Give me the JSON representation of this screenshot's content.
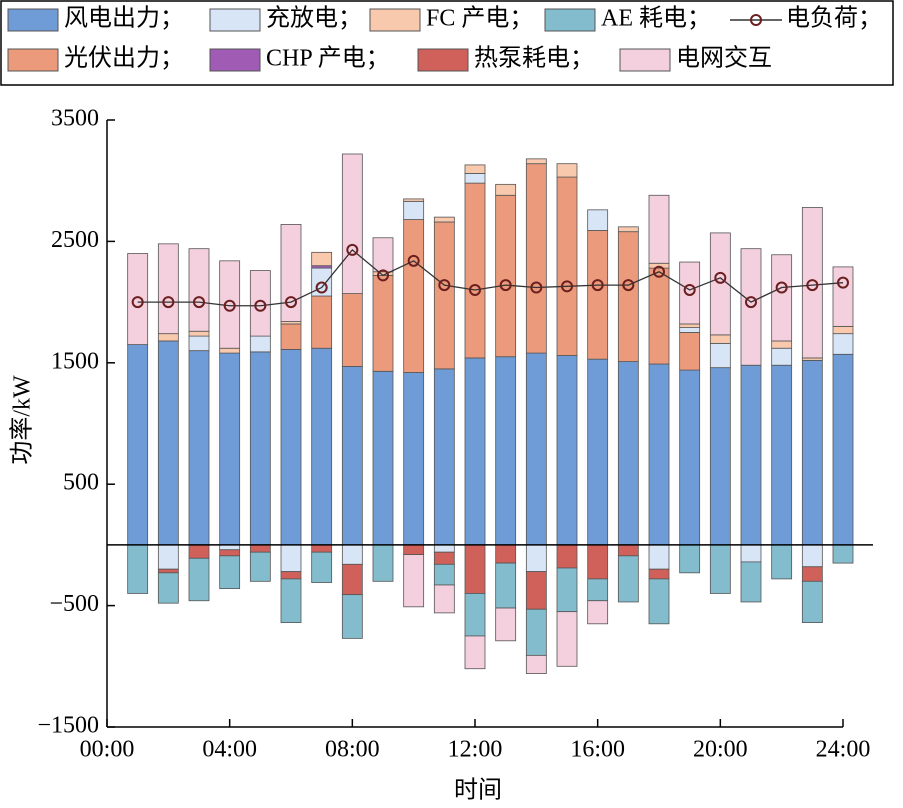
{
  "chart_data": {
    "type": "bar",
    "stacked": true,
    "x_label": "时间",
    "y_label": "功率/kW",
    "x": [
      1,
      2,
      3,
      4,
      5,
      6,
      7,
      8,
      9,
      10,
      11,
      12,
      13,
      14,
      15,
      16,
      17,
      18,
      19,
      20,
      21,
      22,
      23,
      24
    ],
    "xlim": [
      0,
      24
    ],
    "xticks": [
      {
        "value": 0,
        "label": "00:00"
      },
      {
        "value": 4,
        "label": "04:00"
      },
      {
        "value": 8,
        "label": "08:00"
      },
      {
        "value": 12,
        "label": "12:00"
      },
      {
        "value": 16,
        "label": "16:00"
      },
      {
        "value": 20,
        "label": "20:00"
      },
      {
        "value": 24,
        "label": "24:00"
      }
    ],
    "ylim": [
      -1500,
      3500
    ],
    "yticks": [
      {
        "value": -1500,
        "label": "−1500"
      },
      {
        "value": -500,
        "label": "−500"
      },
      500,
      1500,
      2500,
      3500
    ],
    "series": [
      {
        "name": "风电出力；",
        "color": "#6f9bd6",
        "values": [
          1650,
          1680,
          1600,
          1580,
          1590,
          1610,
          1620,
          1470,
          1430,
          1420,
          1450,
          1540,
          1550,
          1580,
          1560,
          1530,
          1510,
          1490,
          1440,
          1460,
          1480,
          1480,
          1520,
          1570
        ]
      },
      {
        "name": "光伏出力；",
        "color": "#eb9b7c",
        "values": [
          0,
          0,
          0,
          0,
          0,
          210,
          430,
          600,
          790,
          1260,
          1210,
          1440,
          1330,
          1560,
          1470,
          1060,
          1070,
          790,
          310,
          0,
          0,
          0,
          0,
          0
        ]
      },
      {
        "name": "充放电；",
        "color": "#d7e5f6",
        "values": [
          0,
          -200,
          120,
          -40,
          130,
          -220,
          230,
          -160,
          0,
          150,
          -60,
          80,
          0,
          -220,
          0,
          170,
          0,
          -200,
          40,
          200,
          -140,
          140,
          -180,
          170
        ]
      },
      {
        "name": "CHP 产电；",
        "color": "#a05bb5",
        "values": [
          0,
          0,
          0,
          0,
          0,
          0,
          20,
          0,
          0,
          0,
          0,
          0,
          0,
          0,
          0,
          0,
          0,
          0,
          0,
          0,
          0,
          0,
          0,
          0
        ]
      },
      {
        "name": "FC 产电；",
        "color": "#f8c9ad",
        "values": [
          0,
          60,
          40,
          40,
          0,
          20,
          110,
          0,
          30,
          20,
          40,
          70,
          90,
          40,
          110,
          0,
          40,
          40,
          30,
          70,
          0,
          60,
          20,
          60
        ]
      },
      {
        "name": "热泵耗电；",
        "color": "#d0605a",
        "values": [
          0,
          -30,
          -110,
          -50,
          -60,
          -60,
          -60,
          -250,
          0,
          -80,
          -100,
          -400,
          -150,
          -310,
          -190,
          -280,
          -90,
          -80,
          0,
          0,
          0,
          0,
          -120,
          0
        ]
      },
      {
        "name": "AE 耗电；",
        "color": "#83bccd",
        "values": [
          -400,
          -250,
          -350,
          -270,
          -240,
          -360,
          -250,
          -360,
          -300,
          0,
          -170,
          -350,
          -370,
          -380,
          -360,
          -180,
          -380,
          -370,
          -230,
          -400,
          -330,
          -280,
          -340,
          -150
        ]
      },
      {
        "name": "电网交互",
        "color": "#f4cfdd",
        "values": [
          750,
          740,
          680,
          720,
          540,
          800,
          0,
          1150,
          280,
          -430,
          -230,
          -270,
          -270,
          -150,
          -450,
          -190,
          0,
          560,
          510,
          840,
          960,
          710,
          1240,
          490
        ]
      },
      {
        "name": "电负荷；",
        "color": "#333333",
        "type": "line",
        "marker": "circle",
        "values": [
          2000,
          2000,
          2000,
          1970,
          1970,
          2000,
          2120,
          2430,
          2220,
          2340,
          2140,
          2100,
          2140,
          2120,
          2130,
          2140,
          2140,
          2250,
          2100,
          2200,
          2000,
          2120,
          2140,
          2160
        ]
      }
    ]
  }
}
